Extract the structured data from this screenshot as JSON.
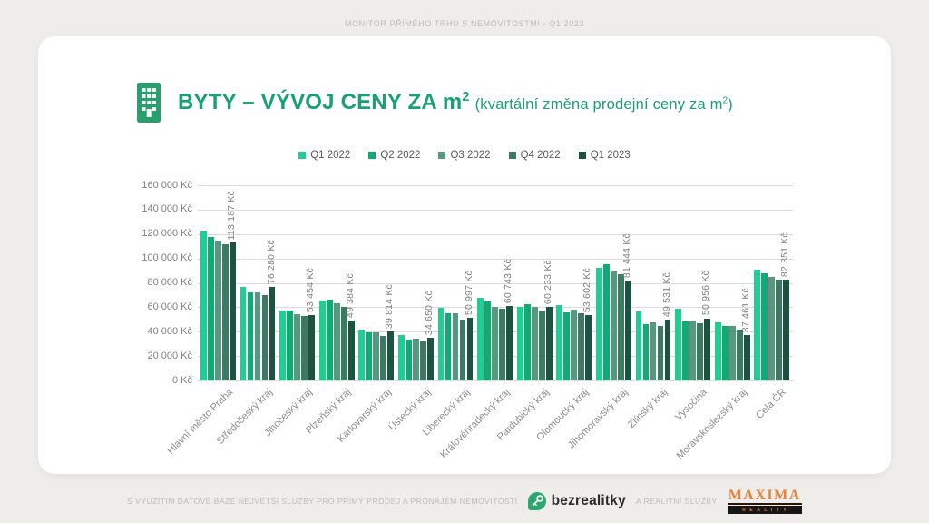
{
  "header": {
    "note": "MONITOR PŘÍMÉHO TRHU S NEMOVITOSTMI - Q1 2023"
  },
  "title": {
    "main": "BYTY – VÝVOJ CENY ZA m",
    "main_sup": "2",
    "sub_pre": "(kvartální změna prodejní ceny za m",
    "sub_sup": "2",
    "sub_post": ")"
  },
  "colors": {
    "background": "#efedea",
    "card": "#ffffff",
    "accent_green": "#18a173",
    "icon_green": "#28a06d",
    "muted_text": "#bdbbb8",
    "axis_text": "#808080",
    "legend_text": "#595959",
    "gridline": "#dbdbdb",
    "bezrealitky_green": "#2ca86e",
    "bezrealitky_text": "#2b2b2b",
    "maxima_orange": "#e8823a",
    "maxima_bar": "#161616"
  },
  "chart_data": {
    "type": "bar",
    "title": "BYTY – VÝVOJ CENY ZA m² (kvartální změna prodejní ceny za m²)",
    "xlabel": "",
    "ylabel": "",
    "ylim": [
      0,
      160000
    ],
    "ytick_step": 20000,
    "grid": true,
    "legend_position": "top",
    "ytick_labels": [
      "0 Kč",
      "20 000 Kč",
      "40 000 Kč",
      "60 000 Kč",
      "80 000 Kč",
      "100 000 Kč",
      "120 000 Kč",
      "140 000 Kč",
      "160 000 Kč"
    ],
    "categories": [
      "Hlavní město Praha",
      "Středočeský kraj",
      "Jihočeský kraj",
      "Plzeňský kraj",
      "Karlovarský kraj",
      "Ústecký kraj",
      "Liberecký kraj",
      "Královéhradecký kraj",
      "Pardubický kraj",
      "Olomoucký kraj",
      "Jihomoravský kraj",
      "Zlínský kraj",
      "Vysočina",
      "Moravskoslezský kraj",
      "Celá ČR"
    ],
    "series": [
      {
        "name": "Q1 2022",
        "color": "#1fce93",
        "values": [
          123000,
          76500,
          57000,
          65500,
          42000,
          37500,
          59500,
          68000,
          60500,
          61500,
          92000,
          56500,
          59000,
          47500,
          90500
        ]
      },
      {
        "name": "Q2 2022",
        "color": "#10ab72",
        "values": [
          117500,
          72500,
          57500,
          66500,
          39500,
          33500,
          55000,
          65000,
          62500,
          55500,
          95500,
          46000,
          48500,
          44500,
          88000
        ]
      },
      {
        "name": "Q3 2022",
        "color": "#55997e",
        "values": [
          114500,
          72500,
          54000,
          63000,
          39500,
          34000,
          55000,
          60500,
          60000,
          58000,
          89000,
          47500,
          49000,
          44500,
          85000
        ]
      },
      {
        "name": "Q4 2022",
        "color": "#3c7a61",
        "values": [
          112000,
          70000,
          52500,
          60500,
          36500,
          32000,
          50000,
          58500,
          56500,
          55000,
          87000,
          45000,
          47000,
          41500,
          82500
        ]
      },
      {
        "name": "Q1 2023",
        "color": "#1d5441",
        "values": [
          113187,
          76280,
          53454,
          49384,
          39814,
          34650,
          50997,
          60743,
          60233,
          53602,
          81444,
          49531,
          50956,
          37461,
          82351
        ],
        "data_labels": [
          "113 187 Kč",
          "76 280 Kč",
          "53 454 Kč",
          "49 384 Kč",
          "39 814 Kč",
          "34 650 Kč",
          "50 997 Kč",
          "60 743 Kč",
          "60 233 Kč",
          "53 602 Kč",
          "81 444 Kč",
          "49 531 Kč",
          "50 956 Kč",
          "37 461 Kč",
          "82 351 Kč"
        ]
      }
    ]
  },
  "footer": {
    "left_note": "S VYUŽITÍM DATOVÉ BÁZE NEJVĚTŠÍ SLUŽBY PRO PŘÍMÝ PRODEJ A PRONÁJEM NEMOVITOSTÍ",
    "bezrealitky": "bezrealitky",
    "middle_note": "A REALITNÍ SLUŽBY",
    "maxima": "MAXIMA",
    "maxima_sub": "REALITY"
  }
}
